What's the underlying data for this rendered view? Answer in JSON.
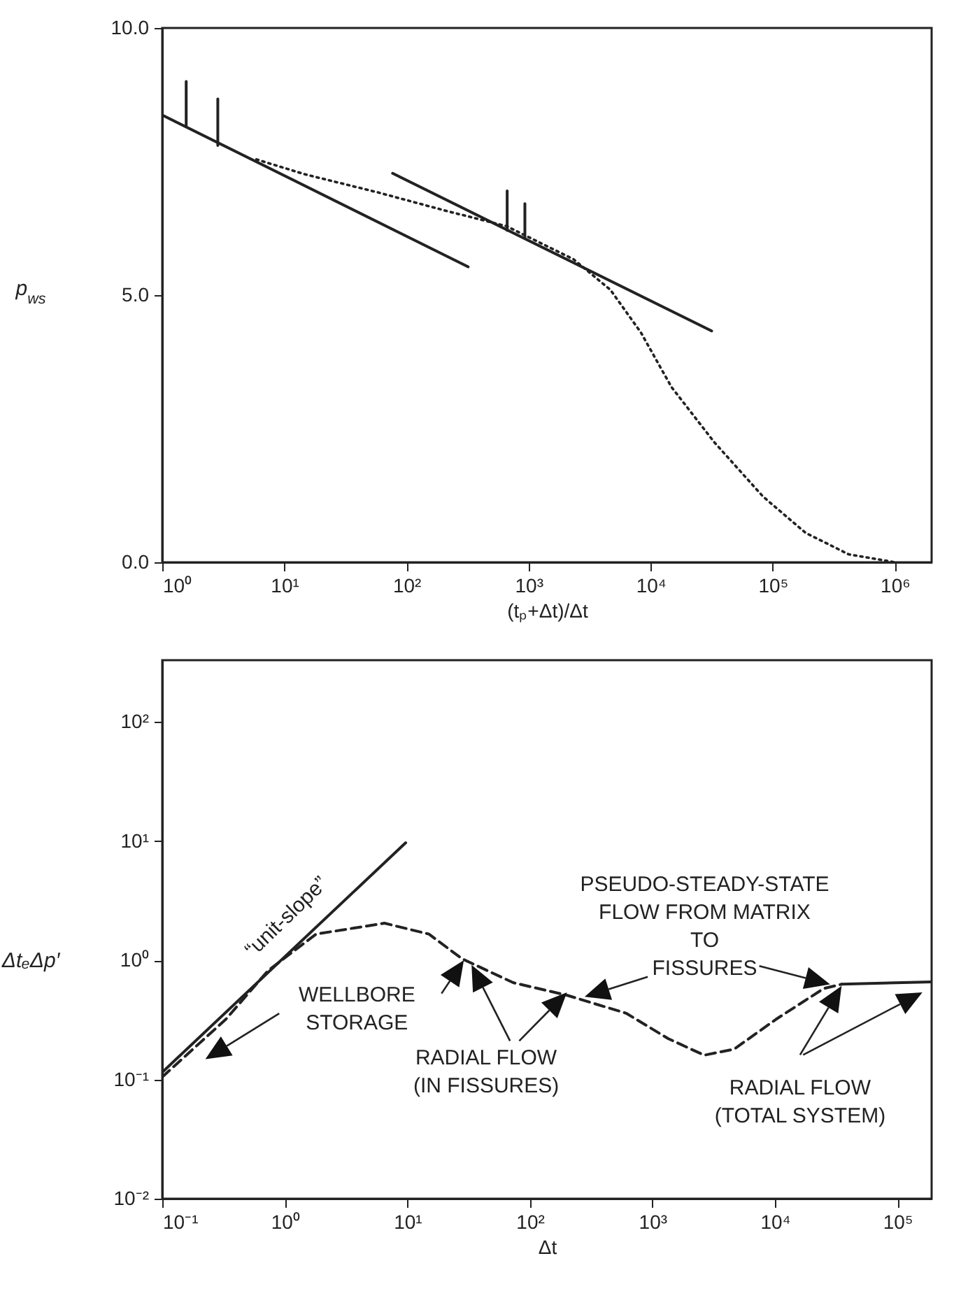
{
  "chart_data": [
    {
      "type": "line",
      "xlabel": "(tₚ+Δt)/Δt",
      "ylabel": "p$_{ws}$",
      "log": "x",
      "xlim": [
        1,
        2000000
      ],
      "ylim": [
        0,
        10
      ],
      "xticks": [
        {
          "value": 1,
          "label": "10⁰"
        },
        {
          "value": 10,
          "label": "10¹"
        },
        {
          "value": 100,
          "label": "10²"
        },
        {
          "value": 1000,
          "label": "10³"
        },
        {
          "value": 10000,
          "label": "10⁴"
        },
        {
          "value": 100000,
          "label": "10⁵"
        },
        {
          "value": 1000000,
          "label": "10⁶"
        }
      ],
      "yticks": [
        {
          "value": 0,
          "label": "0.0"
        },
        {
          "value": 5,
          "label": "5.0"
        },
        {
          "value": 10,
          "label": "10.0"
        }
      ],
      "series": [
        {
          "color": "#222222",
          "line_style": "solid",
          "x": [
            1,
            320
          ],
          "values": [
            8.37,
            5.53
          ]
        },
        {
          "color": "#222222",
          "line_style": "solid",
          "x": [
            77,
            31600
          ],
          "values": [
            7.28,
            4.33
          ]
        },
        {
          "color": "#222222",
          "line_style": "dotted",
          "x": [
            5.9,
            14.8,
            58.9,
            209,
            661,
            2340,
            4680,
            8320,
            14800,
            33100,
            83200,
            186000,
            417000,
            1000000
          ],
          "values": [
            7.54,
            7.26,
            6.92,
            6.58,
            6.29,
            5.67,
            5.1,
            4.3,
            3.28,
            2.25,
            1.23,
            0.55,
            0.15,
            0
          ]
        },
        {
          "color": "#222222",
          "line_style": "solid",
          "x": [
            1.57,
            1.57
          ],
          "values": [
            8.17,
            9.0
          ]
        },
        {
          "color": "#222222",
          "line_style": "solid",
          "x": [
            2.85,
            2.85
          ],
          "values": [
            7.8,
            8.67
          ]
        },
        {
          "color": "#222222",
          "line_style": "solid",
          "x": [
            668,
            668
          ],
          "values": [
            6.21,
            6.95
          ]
        },
        {
          "color": "#222222",
          "line_style": "solid",
          "x": [
            933,
            933
          ],
          "values": [
            6.06,
            6.71
          ]
        }
      ]
    },
    {
      "type": "line",
      "xlabel": "Δt",
      "ylabel": "ΔtₑΔp′",
      "log": "xy",
      "xlim": [
        0.1,
        190000
      ],
      "ylim": [
        0.01,
        330
      ],
      "xticks": [
        {
          "value": 0.1,
          "label": "10⁻¹"
        },
        {
          "value": 1,
          "label": "10⁰"
        },
        {
          "value": 10,
          "label": "10¹"
        },
        {
          "value": 100,
          "label": "10²"
        },
        {
          "value": 1000,
          "label": "10³"
        },
        {
          "value": 10000,
          "label": "10⁴"
        },
        {
          "value": 100000,
          "label": "10⁵"
        }
      ],
      "yticks": [
        {
          "value": 0.01,
          "label": "10⁻²"
        },
        {
          "value": 0.1,
          "label": "10⁻¹"
        },
        {
          "value": 1,
          "label": "10⁰"
        },
        {
          "value": 10,
          "label": "10¹"
        },
        {
          "value": 100,
          "label": "10²"
        }
      ],
      "series": [
        {
          "color": "#222222",
          "line_style": "solid",
          "x": [
            0.1,
            9.7
          ],
          "values": [
            0.115,
            9.7
          ]
        },
        {
          "color": "#222222",
          "line_style": "dashed",
          "x": [
            0.1,
            0.33,
            0.73,
            1.8,
            6.5,
            15,
            28,
            73,
            200,
            610,
            1350,
            2650,
            4650,
            10200,
            25000,
            35000
          ],
          "values": [
            0.105,
            0.32,
            0.82,
            1.66,
            2.05,
            1.66,
            1.03,
            0.65,
            0.51,
            0.36,
            0.22,
            0.16,
            0.18,
            0.32,
            0.58,
            0.63
          ]
        },
        {
          "color": "#222222",
          "line_style": "solid",
          "x": [
            35000,
            190000
          ],
          "values": [
            0.63,
            0.66
          ]
        }
      ],
      "annotations": [
        "“unit-slope”",
        "WELLBORE\nSTORAGE",
        "RADIAL FLOW\n(IN FISSURES)",
        "PSEUDO-STEADY-STATE\nFLOW FROM MATRIX\nTO\nFISSURES",
        "RADIAL FLOW\n(TOTAL SYSTEM)"
      ]
    }
  ]
}
